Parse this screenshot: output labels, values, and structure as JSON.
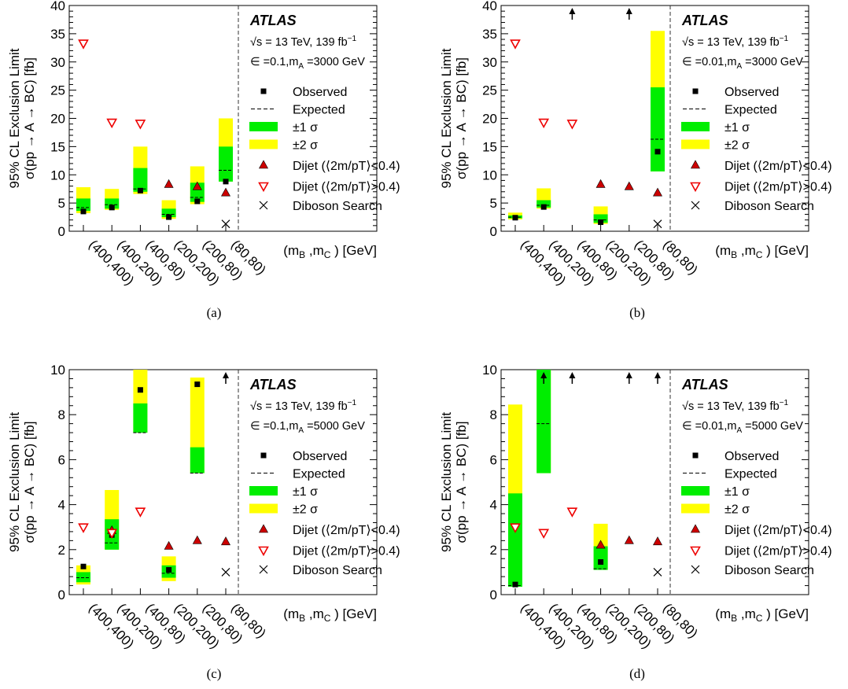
{
  "common": {
    "ylabel_line1": "95% CL Exclusion Limit",
    "ylabel_line2": "σ(pp → A → BC) [fb]",
    "xlabel": "(m",
    "xlabel_sub_b": "B",
    "xlabel_mid": " ,m",
    "xlabel_sub_c": "C",
    "xlabel_end": " ) [GeV]",
    "experiment": "ATLAS",
    "energy": "√s = 13 TeV, 139 fb",
    "energy_sup": "−1",
    "legend": {
      "observed": "Observed",
      "expected": "Expected",
      "one_sigma": "±1 σ",
      "two_sigma": "±2 σ",
      "dijet_low": "Dijet (⟨2m/pT⟩<0.4)",
      "dijet_high": "Dijet (⟨2m/pT⟩>0.4)",
      "diboson": "Diboson Search"
    },
    "colors": {
      "one_sigma": "#00ee00",
      "two_sigma": "#ffff00",
      "dijet_low": "#cc0000",
      "dijet_high": "#ee0000",
      "observed": "#000000"
    }
  },
  "chart_data": [
    {
      "panel": "(a)",
      "type": "scatter",
      "params": "∈ =0.1,m",
      "params_sub": "A",
      "params_end": " =3000 GeV",
      "categories": [
        "(400,400)",
        "(400,200)",
        "(400,80)",
        "(200,200)",
        "(200,80)",
        "(80,80)"
      ],
      "ylim": [
        0,
        40
      ],
      "yticks": [
        0,
        5,
        10,
        15,
        20,
        25,
        30,
        35,
        40
      ],
      "observed": [
        3.5,
        4.2,
        7.2,
        2.5,
        5.3,
        8.8
      ],
      "expected": [
        4.2,
        4.7,
        7.5,
        3.0,
        6.0,
        10.8
      ],
      "one_sigma": [
        [
          3.6,
          5.8
        ],
        [
          4.0,
          5.8
        ],
        [
          7.0,
          11.2
        ],
        [
          2.5,
          4.0
        ],
        [
          5.2,
          8.6
        ],
        [
          8.8,
          15.0
        ]
      ],
      "two_sigma": [
        [
          3.2,
          7.8
        ],
        [
          3.8,
          7.5
        ],
        [
          6.6,
          15.0
        ],
        [
          2.2,
          5.5
        ],
        [
          4.8,
          11.5
        ],
        [
          8.8,
          20.0
        ]
      ],
      "dijet_low": [
        null,
        null,
        null,
        8.3,
        7.9,
        6.8
      ],
      "dijet_high": [
        33.3,
        19.3,
        19.1,
        null,
        null,
        null
      ],
      "diboson": [
        null,
        null,
        null,
        null,
        null,
        1.3
      ],
      "arrows": []
    },
    {
      "panel": "(b)",
      "type": "scatter",
      "params": "∈ =0.01,m",
      "params_sub": "A",
      "params_end": " =3000 GeV",
      "categories": [
        "(400,400)",
        "(400,200)",
        "(400,80)",
        "(200,200)",
        "(200,80)",
        "(80,80)"
      ],
      "ylim": [
        0,
        40
      ],
      "yticks": [
        0,
        5,
        10,
        15,
        20,
        25,
        30,
        35,
        40
      ],
      "observed": [
        2.4,
        4.3,
        null,
        1.6,
        null,
        14.1
      ],
      "expected": [
        2.5,
        4.6,
        null,
        2.0,
        null,
        16.3
      ],
      "one_sigma": [
        [
          2.3,
          2.8
        ],
        [
          4.2,
          5.5
        ],
        null,
        [
          1.5,
          3.0
        ],
        null,
        [
          10.6,
          25.5
        ]
      ],
      "two_sigma": [
        [
          2.1,
          3.3
        ],
        [
          4.0,
          7.6
        ],
        null,
        [
          1.3,
          4.4
        ],
        null,
        [
          10.6,
          35.5
        ]
      ],
      "dijet_low": [
        null,
        null,
        null,
        8.3,
        7.9,
        6.8
      ],
      "dijet_high": [
        33.3,
        19.3,
        19.1,
        null,
        null,
        null
      ],
      "diboson": [
        null,
        null,
        null,
        null,
        null,
        1.3
      ],
      "arrows": [
        2,
        4
      ]
    },
    {
      "panel": "(c)",
      "type": "scatter",
      "params": "∈ =0.1,m",
      "params_sub": "A",
      "params_end": " =5000 GeV",
      "categories": [
        "(400,400)",
        "(400,200)",
        "(400,80)",
        "(200,200)",
        "(200,80)",
        "(80,80)"
      ],
      "ylim": [
        0,
        10
      ],
      "yticks": [
        0,
        2,
        4,
        6,
        8,
        10
      ],
      "observed": [
        1.25,
        2.65,
        9.1,
        1.1,
        9.35,
        null
      ],
      "expected": [
        0.75,
        2.3,
        7.2,
        0.95,
        5.4,
        null
      ],
      "one_sigma": [
        [
          0.55,
          1.0
        ],
        [
          2.0,
          3.35
        ],
        [
          7.2,
          8.5
        ],
        [
          0.75,
          1.3
        ],
        [
          5.4,
          6.55
        ],
        null
      ],
      "two_sigma": [
        [
          0.45,
          1.3
        ],
        [
          2.0,
          4.65
        ],
        [
          7.2,
          10.0
        ],
        [
          0.6,
          1.7
        ],
        [
          5.4,
          9.65
        ],
        null
      ],
      "dijet_low": [
        null,
        2.85,
        null,
        2.15,
        2.4,
        2.35
      ],
      "dijet_high": [
        3.0,
        2.75,
        3.7,
        null,
        null,
        null
      ],
      "diboson": [
        null,
        null,
        null,
        null,
        null,
        1.0
      ],
      "arrows": [
        5
      ]
    },
    {
      "panel": "(d)",
      "type": "scatter",
      "params": "∈ =0.01,m",
      "params_sub": "A",
      "params_end": " =5000 GeV",
      "categories": [
        "(400,400)",
        "(400,200)",
        "(400,80)",
        "(200,200)",
        "(200,80)",
        "(80,80)"
      ],
      "ylim": [
        0,
        10
      ],
      "yticks": [
        0,
        2,
        4,
        6,
        8,
        10
      ],
      "observed": [
        0.45,
        null,
        null,
        1.45,
        null,
        null
      ],
      "expected": [
        0.4,
        7.6,
        null,
        1.15,
        null,
        null
      ],
      "one_sigma": [
        [
          0.35,
          4.5
        ],
        [
          5.4,
          10.0
        ],
        null,
        [
          1.1,
          2.15
        ],
        null,
        null
      ],
      "two_sigma": [
        [
          0.35,
          8.45
        ],
        [
          5.4,
          10.0
        ],
        null,
        [
          1.1,
          3.15
        ],
        null,
        null
      ],
      "dijet_low": [
        null,
        null,
        null,
        2.2,
        2.4,
        2.35
      ],
      "dijet_high": [
        3.0,
        2.75,
        3.7,
        null,
        null,
        null
      ],
      "diboson": [
        null,
        null,
        null,
        null,
        null,
        1.0
      ],
      "arrows": [
        1,
        2,
        4,
        5
      ]
    }
  ]
}
